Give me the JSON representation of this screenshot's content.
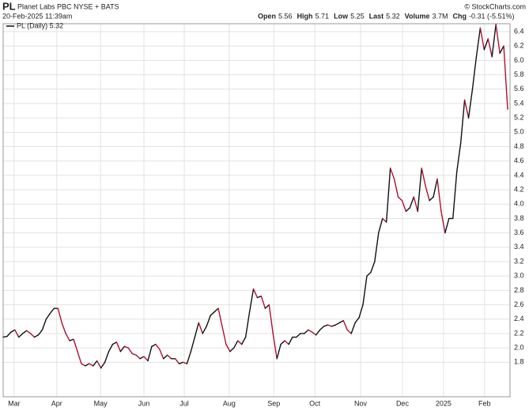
{
  "chart_data": {
    "type": "line",
    "symbol": "PL",
    "name": "Planet Labs PBC NYSE + BATS",
    "timestamp": "20-Feb-2025 11:39am",
    "brand": "© StockCharts.com",
    "quote": [
      {
        "label": "Open",
        "value": 5.56
      },
      {
        "label": "High",
        "value": 5.71
      },
      {
        "label": "Low",
        "value": 5.25
      },
      {
        "label": "Last",
        "value": 5.32
      },
      {
        "label": "Volume",
        "value": "3.7M"
      },
      {
        "label": "Chg",
        "value": "-0.31 (-5.51%)"
      }
    ],
    "legend": "PL (Daily) 5.32",
    "up_color": "#111111",
    "down_color": "#b01030",
    "grid": true,
    "values": [
      2.15,
      2.16,
      2.22,
      2.25,
      2.15,
      2.2,
      2.24,
      2.2,
      2.15,
      2.18,
      2.25,
      2.4,
      2.48,
      2.55,
      2.55,
      2.35,
      2.2,
      2.1,
      2.12,
      1.95,
      1.78,
      1.75,
      1.78,
      1.75,
      1.82,
      1.72,
      1.8,
      1.95,
      2.05,
      2.08,
      1.95,
      2.02,
      2.0,
      1.92,
      1.9,
      1.85,
      1.88,
      1.82,
      2.02,
      2.05,
      1.98,
      1.85,
      1.9,
      1.85,
      1.85,
      1.78,
      1.8,
      1.78,
      1.95,
      2.15,
      2.35,
      2.2,
      2.3,
      2.45,
      2.5,
      2.55,
      2.3,
      2.05,
      1.95,
      2.0,
      2.1,
      2.05,
      2.15,
      2.5,
      2.82,
      2.7,
      2.72,
      2.55,
      2.6,
      2.2,
      1.85,
      2.05,
      2.1,
      2.05,
      2.15,
      2.15,
      2.2,
      2.2,
      2.25,
      2.22,
      2.18,
      2.25,
      2.3,
      2.32,
      2.3,
      2.32,
      2.35,
      2.38,
      2.25,
      2.2,
      2.35,
      2.42,
      2.6,
      3.0,
      3.05,
      3.2,
      3.6,
      3.8,
      3.75,
      4.5,
      4.35,
      4.1,
      4.05,
      3.9,
      3.95,
      4.1,
      3.9,
      4.5,
      4.25,
      4.05,
      4.1,
      4.35,
      3.9,
      3.6,
      3.8,
      3.8,
      4.45,
      4.85,
      5.45,
      5.2,
      5.6,
      6.05,
      6.45,
      6.15,
      6.3,
      6.05,
      6.5,
      6.1,
      6.2,
      5.32
    ],
    "xlim": [
      0,
      129
    ],
    "xticks": [
      {
        "value": 2.8,
        "label": "Mar"
      },
      {
        "value": 13.7,
        "label": "Apr"
      },
      {
        "value": 24.9,
        "label": "May"
      },
      {
        "value": 36,
        "label": "Jun"
      },
      {
        "value": 46.3,
        "label": "Jul"
      },
      {
        "value": 57.8,
        "label": "Aug"
      },
      {
        "value": 69.2,
        "label": "Sep"
      },
      {
        "value": 79.7,
        "label": "Oct"
      },
      {
        "value": 91.4,
        "label": "Nov"
      },
      {
        "value": 102.1,
        "label": "Dec"
      },
      {
        "value": 112.6,
        "label": "2025"
      },
      {
        "value": 123.1,
        "label": "Feb"
      }
    ],
    "ylim": [
      1.32,
      6.51
    ],
    "yticks": [
      1.8,
      {
        "value": 2.0,
        "label": "2.0"
      },
      2.2,
      2.4,
      2.6,
      2.8,
      {
        "value": 3.0,
        "label": "3.0"
      },
      3.2,
      3.4,
      3.6,
      3.8,
      {
        "value": 4.0,
        "label": "4.0"
      },
      4.2,
      4.4,
      4.6,
      4.8,
      {
        "value": 5.0,
        "label": "5.0"
      },
      5.2,
      5.4,
      5.6,
      5.8,
      {
        "value": 6.0,
        "label": "6.0"
      },
      6.2,
      6.4
    ]
  }
}
